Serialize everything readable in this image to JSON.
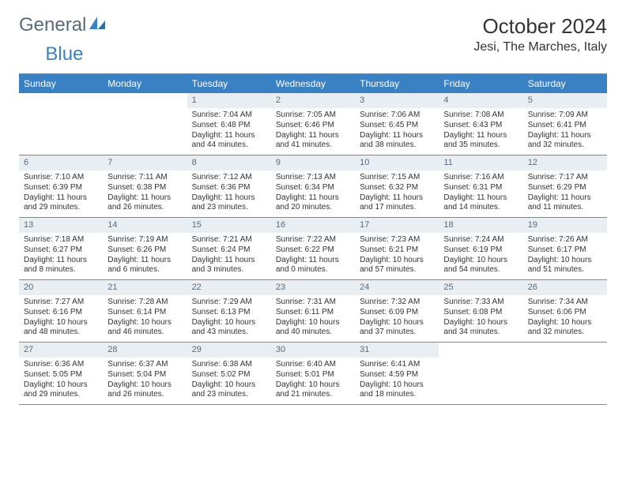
{
  "brand": {
    "word1": "General",
    "word2": "Blue"
  },
  "title": "October 2024",
  "location": "Jesi, The Marches, Italy",
  "header_bg": "#3a81c4",
  "daynum_bg": "#e9eef3",
  "weekdays": [
    "Sunday",
    "Monday",
    "Tuesday",
    "Wednesday",
    "Thursday",
    "Friday",
    "Saturday"
  ],
  "weeks": [
    [
      {
        "day": "",
        "sunrise": "",
        "sunset": "",
        "daylight": ""
      },
      {
        "day": "",
        "sunrise": "",
        "sunset": "",
        "daylight": ""
      },
      {
        "day": "1",
        "sunrise": "Sunrise: 7:04 AM",
        "sunset": "Sunset: 6:48 PM",
        "daylight": "Daylight: 11 hours and 44 minutes."
      },
      {
        "day": "2",
        "sunrise": "Sunrise: 7:05 AM",
        "sunset": "Sunset: 6:46 PM",
        "daylight": "Daylight: 11 hours and 41 minutes."
      },
      {
        "day": "3",
        "sunrise": "Sunrise: 7:06 AM",
        "sunset": "Sunset: 6:45 PM",
        "daylight": "Daylight: 11 hours and 38 minutes."
      },
      {
        "day": "4",
        "sunrise": "Sunrise: 7:08 AM",
        "sunset": "Sunset: 6:43 PM",
        "daylight": "Daylight: 11 hours and 35 minutes."
      },
      {
        "day": "5",
        "sunrise": "Sunrise: 7:09 AM",
        "sunset": "Sunset: 6:41 PM",
        "daylight": "Daylight: 11 hours and 32 minutes."
      }
    ],
    [
      {
        "day": "6",
        "sunrise": "Sunrise: 7:10 AM",
        "sunset": "Sunset: 6:39 PM",
        "daylight": "Daylight: 11 hours and 29 minutes."
      },
      {
        "day": "7",
        "sunrise": "Sunrise: 7:11 AM",
        "sunset": "Sunset: 6:38 PM",
        "daylight": "Daylight: 11 hours and 26 minutes."
      },
      {
        "day": "8",
        "sunrise": "Sunrise: 7:12 AM",
        "sunset": "Sunset: 6:36 PM",
        "daylight": "Daylight: 11 hours and 23 minutes."
      },
      {
        "day": "9",
        "sunrise": "Sunrise: 7:13 AM",
        "sunset": "Sunset: 6:34 PM",
        "daylight": "Daylight: 11 hours and 20 minutes."
      },
      {
        "day": "10",
        "sunrise": "Sunrise: 7:15 AM",
        "sunset": "Sunset: 6:32 PM",
        "daylight": "Daylight: 11 hours and 17 minutes."
      },
      {
        "day": "11",
        "sunrise": "Sunrise: 7:16 AM",
        "sunset": "Sunset: 6:31 PM",
        "daylight": "Daylight: 11 hours and 14 minutes."
      },
      {
        "day": "12",
        "sunrise": "Sunrise: 7:17 AM",
        "sunset": "Sunset: 6:29 PM",
        "daylight": "Daylight: 11 hours and 11 minutes."
      }
    ],
    [
      {
        "day": "13",
        "sunrise": "Sunrise: 7:18 AM",
        "sunset": "Sunset: 6:27 PM",
        "daylight": "Daylight: 11 hours and 8 minutes."
      },
      {
        "day": "14",
        "sunrise": "Sunrise: 7:19 AM",
        "sunset": "Sunset: 6:26 PM",
        "daylight": "Daylight: 11 hours and 6 minutes."
      },
      {
        "day": "15",
        "sunrise": "Sunrise: 7:21 AM",
        "sunset": "Sunset: 6:24 PM",
        "daylight": "Daylight: 11 hours and 3 minutes."
      },
      {
        "day": "16",
        "sunrise": "Sunrise: 7:22 AM",
        "sunset": "Sunset: 6:22 PM",
        "daylight": "Daylight: 11 hours and 0 minutes."
      },
      {
        "day": "17",
        "sunrise": "Sunrise: 7:23 AM",
        "sunset": "Sunset: 6:21 PM",
        "daylight": "Daylight: 10 hours and 57 minutes."
      },
      {
        "day": "18",
        "sunrise": "Sunrise: 7:24 AM",
        "sunset": "Sunset: 6:19 PM",
        "daylight": "Daylight: 10 hours and 54 minutes."
      },
      {
        "day": "19",
        "sunrise": "Sunrise: 7:26 AM",
        "sunset": "Sunset: 6:17 PM",
        "daylight": "Daylight: 10 hours and 51 minutes."
      }
    ],
    [
      {
        "day": "20",
        "sunrise": "Sunrise: 7:27 AM",
        "sunset": "Sunset: 6:16 PM",
        "daylight": "Daylight: 10 hours and 48 minutes."
      },
      {
        "day": "21",
        "sunrise": "Sunrise: 7:28 AM",
        "sunset": "Sunset: 6:14 PM",
        "daylight": "Daylight: 10 hours and 46 minutes."
      },
      {
        "day": "22",
        "sunrise": "Sunrise: 7:29 AM",
        "sunset": "Sunset: 6:13 PM",
        "daylight": "Daylight: 10 hours and 43 minutes."
      },
      {
        "day": "23",
        "sunrise": "Sunrise: 7:31 AM",
        "sunset": "Sunset: 6:11 PM",
        "daylight": "Daylight: 10 hours and 40 minutes."
      },
      {
        "day": "24",
        "sunrise": "Sunrise: 7:32 AM",
        "sunset": "Sunset: 6:09 PM",
        "daylight": "Daylight: 10 hours and 37 minutes."
      },
      {
        "day": "25",
        "sunrise": "Sunrise: 7:33 AM",
        "sunset": "Sunset: 6:08 PM",
        "daylight": "Daylight: 10 hours and 34 minutes."
      },
      {
        "day": "26",
        "sunrise": "Sunrise: 7:34 AM",
        "sunset": "Sunset: 6:06 PM",
        "daylight": "Daylight: 10 hours and 32 minutes."
      }
    ],
    [
      {
        "day": "27",
        "sunrise": "Sunrise: 6:36 AM",
        "sunset": "Sunset: 5:05 PM",
        "daylight": "Daylight: 10 hours and 29 minutes."
      },
      {
        "day": "28",
        "sunrise": "Sunrise: 6:37 AM",
        "sunset": "Sunset: 5:04 PM",
        "daylight": "Daylight: 10 hours and 26 minutes."
      },
      {
        "day": "29",
        "sunrise": "Sunrise: 6:38 AM",
        "sunset": "Sunset: 5:02 PM",
        "daylight": "Daylight: 10 hours and 23 minutes."
      },
      {
        "day": "30",
        "sunrise": "Sunrise: 6:40 AM",
        "sunset": "Sunset: 5:01 PM",
        "daylight": "Daylight: 10 hours and 21 minutes."
      },
      {
        "day": "31",
        "sunrise": "Sunrise: 6:41 AM",
        "sunset": "Sunset: 4:59 PM",
        "daylight": "Daylight: 10 hours and 18 minutes."
      },
      {
        "day": "",
        "sunrise": "",
        "sunset": "",
        "daylight": ""
      },
      {
        "day": "",
        "sunrise": "",
        "sunset": "",
        "daylight": ""
      }
    ]
  ]
}
